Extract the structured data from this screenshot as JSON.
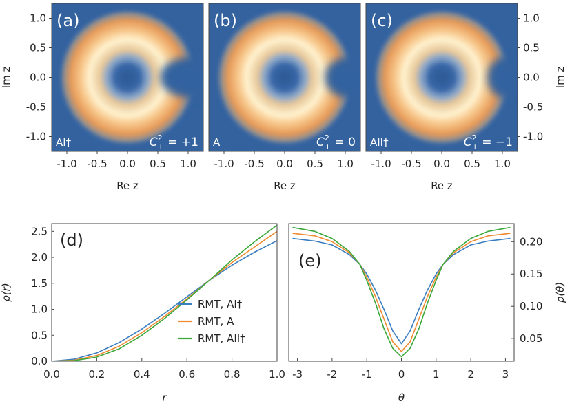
{
  "chart_data": [
    {
      "id": "a",
      "type": "heatmap",
      "panel_label": "(a)",
      "class_label": "AI†",
      "c_sym": "C",
      "c_sup": "2",
      "c_sub": "+",
      "c_value": "= +1",
      "notch_depth": 0.6,
      "xlabel": "Re z",
      "ylabel": "Im z",
      "xlim": [
        -1.25,
        1.25
      ],
      "ylim": [
        -1.25,
        1.25
      ],
      "xticks": [
        "-1.0",
        "-0.5",
        "0.0",
        "0.5",
        "1.0"
      ],
      "yticks": [
        "1.0",
        "0.5",
        "0.0",
        "-0.5",
        "-1.0"
      ]
    },
    {
      "id": "b",
      "type": "heatmap",
      "panel_label": "(b)",
      "class_label": "A",
      "c_sym": "C",
      "c_sup": "2",
      "c_sub": "+",
      "c_value": "= 0",
      "notch_depth": 0.45,
      "xlabel": "Re z",
      "xlim": [
        -1.25,
        1.25
      ],
      "ylim": [
        -1.25,
        1.25
      ],
      "xticks": [
        "-1.0",
        "-0.5",
        "0.0",
        "0.5",
        "1.0"
      ]
    },
    {
      "id": "c",
      "type": "heatmap",
      "panel_label": "(c)",
      "class_label": "AII†",
      "c_sym": "C",
      "c_sup": "2",
      "c_sub": "+",
      "c_value": "= −1",
      "notch_depth": 0.35,
      "xlabel": "Re z",
      "ylabel": "Im z",
      "xlim": [
        -1.25,
        1.25
      ],
      "ylim": [
        -1.25,
        1.25
      ],
      "xticks": [
        "-1.0",
        "-0.5",
        "0.0",
        "0.5",
        "1.0"
      ],
      "yticks": [
        "1.0",
        "0.5",
        "0.0",
        "-0.5",
        "-1.0"
      ]
    },
    {
      "id": "d",
      "type": "line",
      "panel_label": "(d)",
      "xlabel": "r",
      "ylabel": "ρ(r)",
      "xlim": [
        0,
        1.0
      ],
      "ylim": [
        0,
        2.65
      ],
      "xticks": [
        "0.0",
        "0.2",
        "0.4",
        "0.6",
        "0.8",
        "1.0"
      ],
      "yticks": [
        "0.0",
        "0.5",
        "1.0",
        "1.5",
        "2.0",
        "2.5"
      ],
      "legend": [
        "RMT, AI†",
        "RMT, A",
        "RMT, AII†"
      ],
      "x": [
        0.0,
        0.1,
        0.2,
        0.3,
        0.4,
        0.5,
        0.6,
        0.7,
        0.8,
        0.9,
        1.0
      ],
      "series": [
        {
          "name": "RMT, AI†",
          "color": "#3a7ebf",
          "values": [
            0.0,
            0.04,
            0.16,
            0.36,
            0.62,
            0.92,
            1.24,
            1.56,
            1.85,
            2.1,
            2.32
          ]
        },
        {
          "name": "RMT, A",
          "color": "#f08a2e",
          "values": [
            0.0,
            0.02,
            0.11,
            0.29,
            0.55,
            0.86,
            1.2,
            1.56,
            1.9,
            2.2,
            2.5
          ]
        },
        {
          "name": "RMT, AII†",
          "color": "#3aa83a",
          "values": [
            0.0,
            0.01,
            0.08,
            0.24,
            0.5,
            0.82,
            1.18,
            1.56,
            1.95,
            2.3,
            2.62
          ]
        }
      ]
    },
    {
      "id": "e",
      "type": "line",
      "panel_label": "(e)",
      "xlabel": "θ",
      "ylabel": "ρ(θ)",
      "xlim": [
        -3.25,
        3.25
      ],
      "ylim": [
        0.015,
        0.228
      ],
      "xticks": [
        "-3",
        "-2",
        "-1",
        "0",
        "1",
        "2",
        "3"
      ],
      "yticks": [
        "0.05",
        "0.10",
        "0.15",
        "0.20"
      ],
      "x": [
        -3.14,
        -2.5,
        -2.0,
        -1.5,
        -1.2,
        -1.0,
        -0.75,
        -0.5,
        -0.25,
        0.0,
        0.25,
        0.5,
        0.75,
        1.0,
        1.2,
        1.5,
        2.0,
        2.5,
        3.14
      ],
      "series": [
        {
          "name": "RMT, AI†",
          "color": "#3a7ebf",
          "values": [
            0.205,
            0.201,
            0.195,
            0.18,
            0.165,
            0.15,
            0.125,
            0.095,
            0.062,
            0.042,
            0.062,
            0.095,
            0.125,
            0.15,
            0.165,
            0.18,
            0.195,
            0.201,
            0.205
          ]
        },
        {
          "name": "RMT, A",
          "color": "#f08a2e",
          "values": [
            0.213,
            0.209,
            0.2,
            0.183,
            0.165,
            0.145,
            0.115,
            0.08,
            0.045,
            0.03,
            0.045,
            0.08,
            0.115,
            0.145,
            0.165,
            0.183,
            0.2,
            0.209,
            0.213
          ]
        },
        {
          "name": "RMT, AII†",
          "color": "#3aa83a",
          "values": [
            0.222,
            0.216,
            0.205,
            0.185,
            0.165,
            0.14,
            0.105,
            0.065,
            0.035,
            0.022,
            0.035,
            0.065,
            0.105,
            0.14,
            0.165,
            0.185,
            0.205,
            0.216,
            0.222
          ]
        }
      ]
    }
  ]
}
